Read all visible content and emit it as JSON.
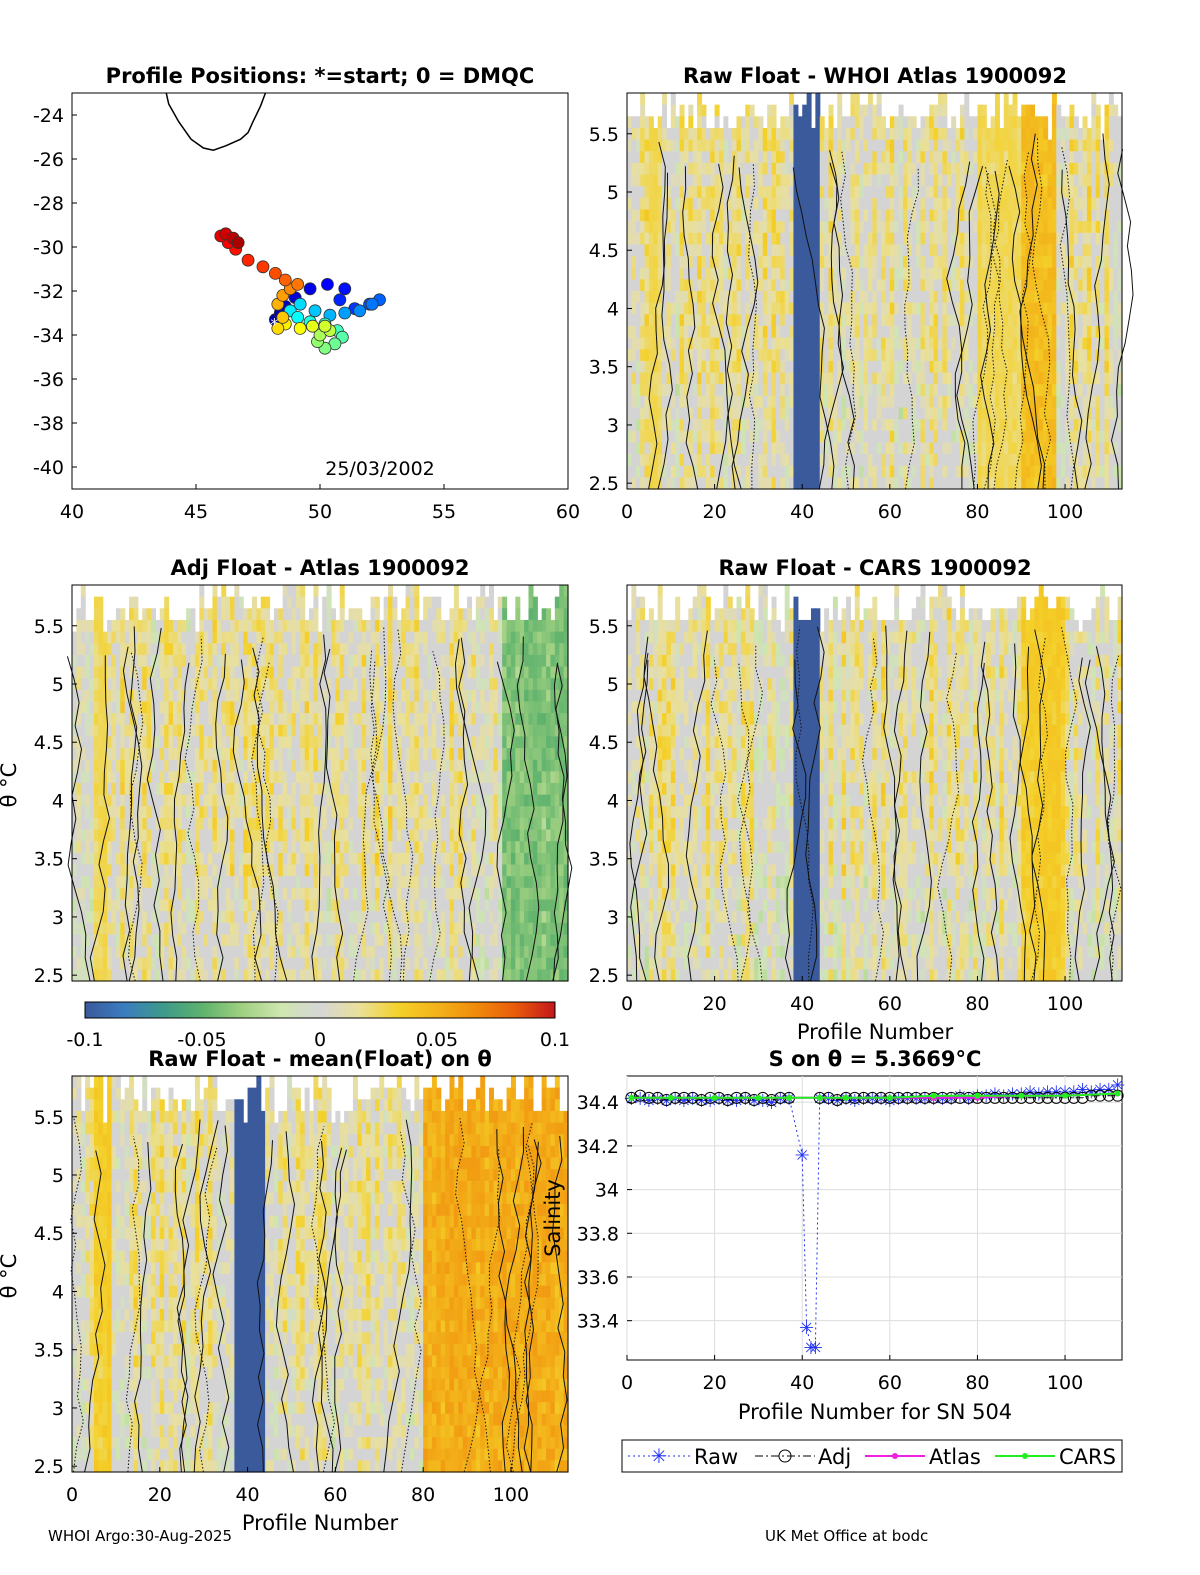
{
  "footer": {
    "left": "WHOI Argo:30-Aug-2025",
    "right": "UK Met Office at bodc"
  },
  "colorbar": {
    "ticks": [
      "-0.1",
      "-0.05",
      "0",
      "0.05",
      "0.1"
    ],
    "min": -0.1,
    "max": 0.1,
    "colors": [
      "#3a5a9b",
      "#3b7cc0",
      "#3d9a8a",
      "#5eb26d",
      "#9fd081",
      "#cfe6b0",
      "#d6d6d6",
      "#e9e09a",
      "#f4d12a",
      "#f3b21a",
      "#f08a0c",
      "#e85a0a",
      "#c3161c"
    ]
  },
  "chart_data": [
    {
      "id": "map",
      "type": "scatter",
      "title": "Profile Positions: *=start; 0 = DMQC",
      "date_label": "25/03/2002",
      "xlim": [
        40,
        60
      ],
      "ylim": [
        -41,
        -23
      ],
      "xticks": [
        "40",
        "45",
        "50",
        "55",
        "60"
      ],
      "yticks": [
        "-24",
        "-26",
        "-28",
        "-30",
        "-32",
        "-34",
        "-36",
        "-38",
        "-40"
      ],
      "start_marker": "*",
      "coastline": [
        [
          43.8,
          -23
        ],
        [
          43.9,
          -23.5
        ],
        [
          44.3,
          -24.3
        ],
        [
          44.8,
          -25.1
        ],
        [
          45.3,
          -25.5
        ],
        [
          45.7,
          -25.6
        ],
        [
          46.2,
          -25.4
        ],
        [
          46.8,
          -25.1
        ],
        [
          47.1,
          -24.8
        ],
        [
          47.3,
          -24.3
        ],
        [
          47.6,
          -23.6
        ],
        [
          47.8,
          -23
        ]
      ],
      "track": [
        {
          "lon": 48.2,
          "lat": -33.3,
          "c": 0.02
        },
        {
          "lon": 48.4,
          "lat": -33.0,
          "c": 0.04
        },
        {
          "lon": 48.6,
          "lat": -32.7,
          "c": 0.06
        },
        {
          "lon": 49.0,
          "lat": -32.3,
          "c": 0.08
        },
        {
          "lon": 49.6,
          "lat": -31.9,
          "c": 0.1
        },
        {
          "lon": 50.3,
          "lat": -31.7,
          "c": 0.12
        },
        {
          "lon": 51.0,
          "lat": -31.9,
          "c": 0.14
        },
        {
          "lon": 50.8,
          "lat": -32.4,
          "c": 0.16
        },
        {
          "lon": 51.4,
          "lat": -32.8,
          "c": 0.18
        },
        {
          "lon": 52.0,
          "lat": -32.6,
          "c": 0.2
        },
        {
          "lon": 52.4,
          "lat": -32.4,
          "c": 0.22
        },
        {
          "lon": 52.1,
          "lat": -32.6,
          "c": 0.24
        },
        {
          "lon": 51.6,
          "lat": -32.9,
          "c": 0.26
        },
        {
          "lon": 51.0,
          "lat": -33.0,
          "c": 0.28
        },
        {
          "lon": 50.4,
          "lat": -33.1,
          "c": 0.3
        },
        {
          "lon": 49.8,
          "lat": -32.9,
          "c": 0.32
        },
        {
          "lon": 49.2,
          "lat": -32.6,
          "c": 0.34
        },
        {
          "lon": 48.8,
          "lat": -32.9,
          "c": 0.36
        },
        {
          "lon": 49.1,
          "lat": -33.2,
          "c": 0.38
        },
        {
          "lon": 49.6,
          "lat": -33.4,
          "c": 0.4
        },
        {
          "lon": 50.2,
          "lat": -33.5,
          "c": 0.42
        },
        {
          "lon": 50.7,
          "lat": -33.8,
          "c": 0.44
        },
        {
          "lon": 50.9,
          "lat": -34.1,
          "c": 0.46
        },
        {
          "lon": 50.6,
          "lat": -34.4,
          "c": 0.48
        },
        {
          "lon": 50.2,
          "lat": -34.6,
          "c": 0.5
        },
        {
          "lon": 49.9,
          "lat": -34.3,
          "c": 0.52
        },
        {
          "lon": 50.0,
          "lat": -34.0,
          "c": 0.54
        },
        {
          "lon": 50.4,
          "lat": -33.8,
          "c": 0.56
        },
        {
          "lon": 50.2,
          "lat": -33.6,
          "c": 0.58
        },
        {
          "lon": 49.7,
          "lat": -33.6,
          "c": 0.6
        },
        {
          "lon": 49.2,
          "lat": -33.7,
          "c": 0.62
        },
        {
          "lon": 48.6,
          "lat": -33.5,
          "c": 0.64
        },
        {
          "lon": 48.3,
          "lat": -33.7,
          "c": 0.66
        },
        {
          "lon": 48.5,
          "lat": -33.2,
          "c": 0.68
        },
        {
          "lon": 48.3,
          "lat": -32.6,
          "c": 0.7
        },
        {
          "lon": 48.5,
          "lat": -32.2,
          "c": 0.72
        },
        {
          "lon": 48.8,
          "lat": -31.9,
          "c": 0.74
        },
        {
          "lon": 49.1,
          "lat": -31.7,
          "c": 0.76
        },
        {
          "lon": 48.6,
          "lat": -31.5,
          "c": 0.78
        },
        {
          "lon": 48.2,
          "lat": -31.2,
          "c": 0.8
        },
        {
          "lon": 47.7,
          "lat": -30.9,
          "c": 0.82
        },
        {
          "lon": 47.1,
          "lat": -30.6,
          "c": 0.84
        },
        {
          "lon": 46.6,
          "lat": -30.1,
          "c": 0.86
        },
        {
          "lon": 46.3,
          "lat": -29.8,
          "c": 0.88
        },
        {
          "lon": 46.0,
          "lat": -29.5,
          "c": 0.9
        },
        {
          "lon": 46.2,
          "lat": -29.4,
          "c": 0.92
        },
        {
          "lon": 46.5,
          "lat": -29.6,
          "c": 0.94
        },
        {
          "lon": 46.7,
          "lat": -29.8,
          "c": 0.96
        }
      ]
    },
    {
      "id": "raw_whoi",
      "type": "heatmap",
      "title": "Raw Float - WHOI Atlas  1900092",
      "xlim": [
        0,
        113
      ],
      "ylim": [
        2.45,
        5.85
      ],
      "xticks": [
        "0",
        "20",
        "40",
        "60",
        "80",
        "100"
      ],
      "yticks": [
        "2.5",
        "3",
        "3.5",
        "4",
        "4.5",
        "5",
        "5.5"
      ],
      "xlabel": "",
      "ylabel": "",
      "anomaly_bands": [
        {
          "x0": 38,
          "x1": 44,
          "val": -0.1
        },
        {
          "x0": 5,
          "x1": 8,
          "val": 0.03
        },
        {
          "x0": 90,
          "x1": 98,
          "val": 0.05
        },
        {
          "x0": 80,
          "x1": 90,
          "val": 0.03
        }
      ]
    },
    {
      "id": "adj_atlas",
      "type": "heatmap",
      "title": "Adj Float - Atlas  1900092",
      "xlim": [
        0,
        113
      ],
      "ylim": [
        2.45,
        5.85
      ],
      "xticks": [],
      "yticks": [
        "2.5",
        "3",
        "3.5",
        "4",
        "4.5",
        "5",
        "5.5"
      ],
      "xlabel": "",
      "ylabel": "θ °C",
      "anomaly_bands": [
        {
          "x0": 5,
          "x1": 8,
          "val": 0.03
        },
        {
          "x0": 98,
          "x1": 113,
          "val": -0.05
        }
      ]
    },
    {
      "id": "raw_cars",
      "type": "heatmap",
      "title": "Raw Float - CARS  1900092",
      "xlim": [
        0,
        113
      ],
      "ylim": [
        2.45,
        5.85
      ],
      "xticks": [
        "0",
        "20",
        "40",
        "60",
        "80",
        "100"
      ],
      "yticks": [
        "2.5",
        "3",
        "3.5",
        "4",
        "4.5",
        "5",
        "5.5"
      ],
      "xlabel": "Profile Number",
      "ylabel": "",
      "anomaly_bands": [
        {
          "x0": 38,
          "x1": 44,
          "val": -0.1
        },
        {
          "x0": 90,
          "x1": 100,
          "val": 0.04
        }
      ]
    },
    {
      "id": "raw_mean",
      "type": "heatmap",
      "title": "Raw Float - mean(Float) on θ",
      "xlim": [
        0,
        113
      ],
      "ylim": [
        2.45,
        5.85
      ],
      "xticks": [
        "0",
        "20",
        "40",
        "60",
        "80",
        "100"
      ],
      "yticks": [
        "2.5",
        "3",
        "3.5",
        "4",
        "4.5",
        "5",
        "5.5"
      ],
      "xlabel": "Profile Number",
      "ylabel": "θ °C",
      "anomaly_bands": [
        {
          "x0": 37,
          "x1": 44,
          "val": -0.1
        },
        {
          "x0": 80,
          "x1": 113,
          "val": 0.06
        },
        {
          "x0": 5,
          "x1": 9,
          "val": 0.04
        }
      ]
    },
    {
      "id": "salinity",
      "type": "line",
      "title": "S on θ = 5.3669°C",
      "xlabel": "Profile Number for SN 504",
      "ylabel": "Salinity",
      "xlim": [
        0,
        113
      ],
      "ylim": [
        33.22,
        34.52
      ],
      "xticks": [
        "0",
        "20",
        "40",
        "60",
        "80",
        "100"
      ],
      "yticks": [
        "33.4",
        "33.6",
        "33.8",
        "34",
        "34.2",
        "34.4"
      ],
      "legend": [
        "Raw",
        "Adj",
        "Atlas",
        "CARS"
      ],
      "legend_position": "below",
      "series": [
        {
          "name": "Raw",
          "x": [
            1,
            3,
            5,
            7,
            9,
            11,
            13,
            15,
            17,
            19,
            21,
            23,
            25,
            27,
            29,
            31,
            33,
            35,
            37,
            40,
            41,
            42,
            43,
            44,
            46,
            48,
            50,
            52,
            54,
            56,
            58,
            60,
            62,
            64,
            66,
            68,
            70,
            72,
            74,
            76,
            78,
            80,
            82,
            84,
            86,
            88,
            90,
            92,
            94,
            96,
            98,
            100,
            102,
            104,
            106,
            108,
            110,
            112
          ],
          "y": [
            34.42,
            34.42,
            34.41,
            34.42,
            34.41,
            34.42,
            34.41,
            34.42,
            34.41,
            34.41,
            34.42,
            34.41,
            34.41,
            34.42,
            34.41,
            34.41,
            34.4,
            34.42,
            34.42,
            34.16,
            33.37,
            33.28,
            33.28,
            34.42,
            34.42,
            34.41,
            34.42,
            34.41,
            34.42,
            34.42,
            34.42,
            34.41,
            34.42,
            34.42,
            34.42,
            34.42,
            34.42,
            34.42,
            34.42,
            34.43,
            34.42,
            34.43,
            34.43,
            34.44,
            34.43,
            34.44,
            34.44,
            34.45,
            34.44,
            34.45,
            34.45,
            34.45,
            34.45,
            34.46,
            34.45,
            34.46,
            34.46,
            34.48
          ]
        },
        {
          "name": "Adj",
          "x": [
            1,
            3,
            5,
            7,
            9,
            11,
            13,
            15,
            17,
            19,
            21,
            23,
            25,
            27,
            29,
            31,
            33,
            35,
            37,
            44,
            46,
            48,
            50,
            52,
            54,
            56,
            58,
            60,
            62,
            64,
            66,
            68,
            70,
            72,
            74,
            76,
            78,
            80,
            82,
            84,
            86,
            88,
            90,
            92,
            94,
            96,
            98,
            100,
            102,
            104,
            106,
            108,
            110,
            112
          ],
          "y": [
            34.42,
            34.43,
            34.42,
            34.42,
            34.41,
            34.42,
            34.42,
            34.42,
            34.41,
            34.42,
            34.42,
            34.41,
            34.42,
            34.42,
            34.41,
            34.42,
            34.41,
            34.42,
            34.42,
            34.42,
            34.42,
            34.41,
            34.42,
            34.42,
            34.42,
            34.42,
            34.42,
            34.42,
            34.42,
            34.42,
            34.42,
            34.42,
            34.42,
            34.42,
            34.42,
            34.42,
            34.42,
            34.42,
            34.42,
            34.42,
            34.42,
            34.42,
            34.42,
            34.42,
            34.42,
            34.42,
            34.42,
            34.42,
            34.42,
            34.42,
            34.43,
            34.43,
            34.43,
            34.43
          ]
        },
        {
          "name": "Atlas",
          "x": [
            1,
            10,
            20,
            30,
            37,
            44,
            50,
            60,
            70,
            80,
            90,
            100,
            112
          ],
          "y": [
            34.42,
            34.42,
            34.42,
            34.42,
            34.42,
            34.42,
            34.42,
            34.42,
            34.42,
            34.42,
            34.43,
            34.43,
            34.44
          ]
        },
        {
          "name": "CARS",
          "x": [
            1,
            10,
            20,
            30,
            37,
            44,
            50,
            60,
            70,
            80,
            90,
            100,
            112
          ],
          "y": [
            34.42,
            34.42,
            34.42,
            34.42,
            34.42,
            34.42,
            34.42,
            34.42,
            34.43,
            34.43,
            34.43,
            34.43,
            34.44
          ]
        }
      ]
    }
  ]
}
